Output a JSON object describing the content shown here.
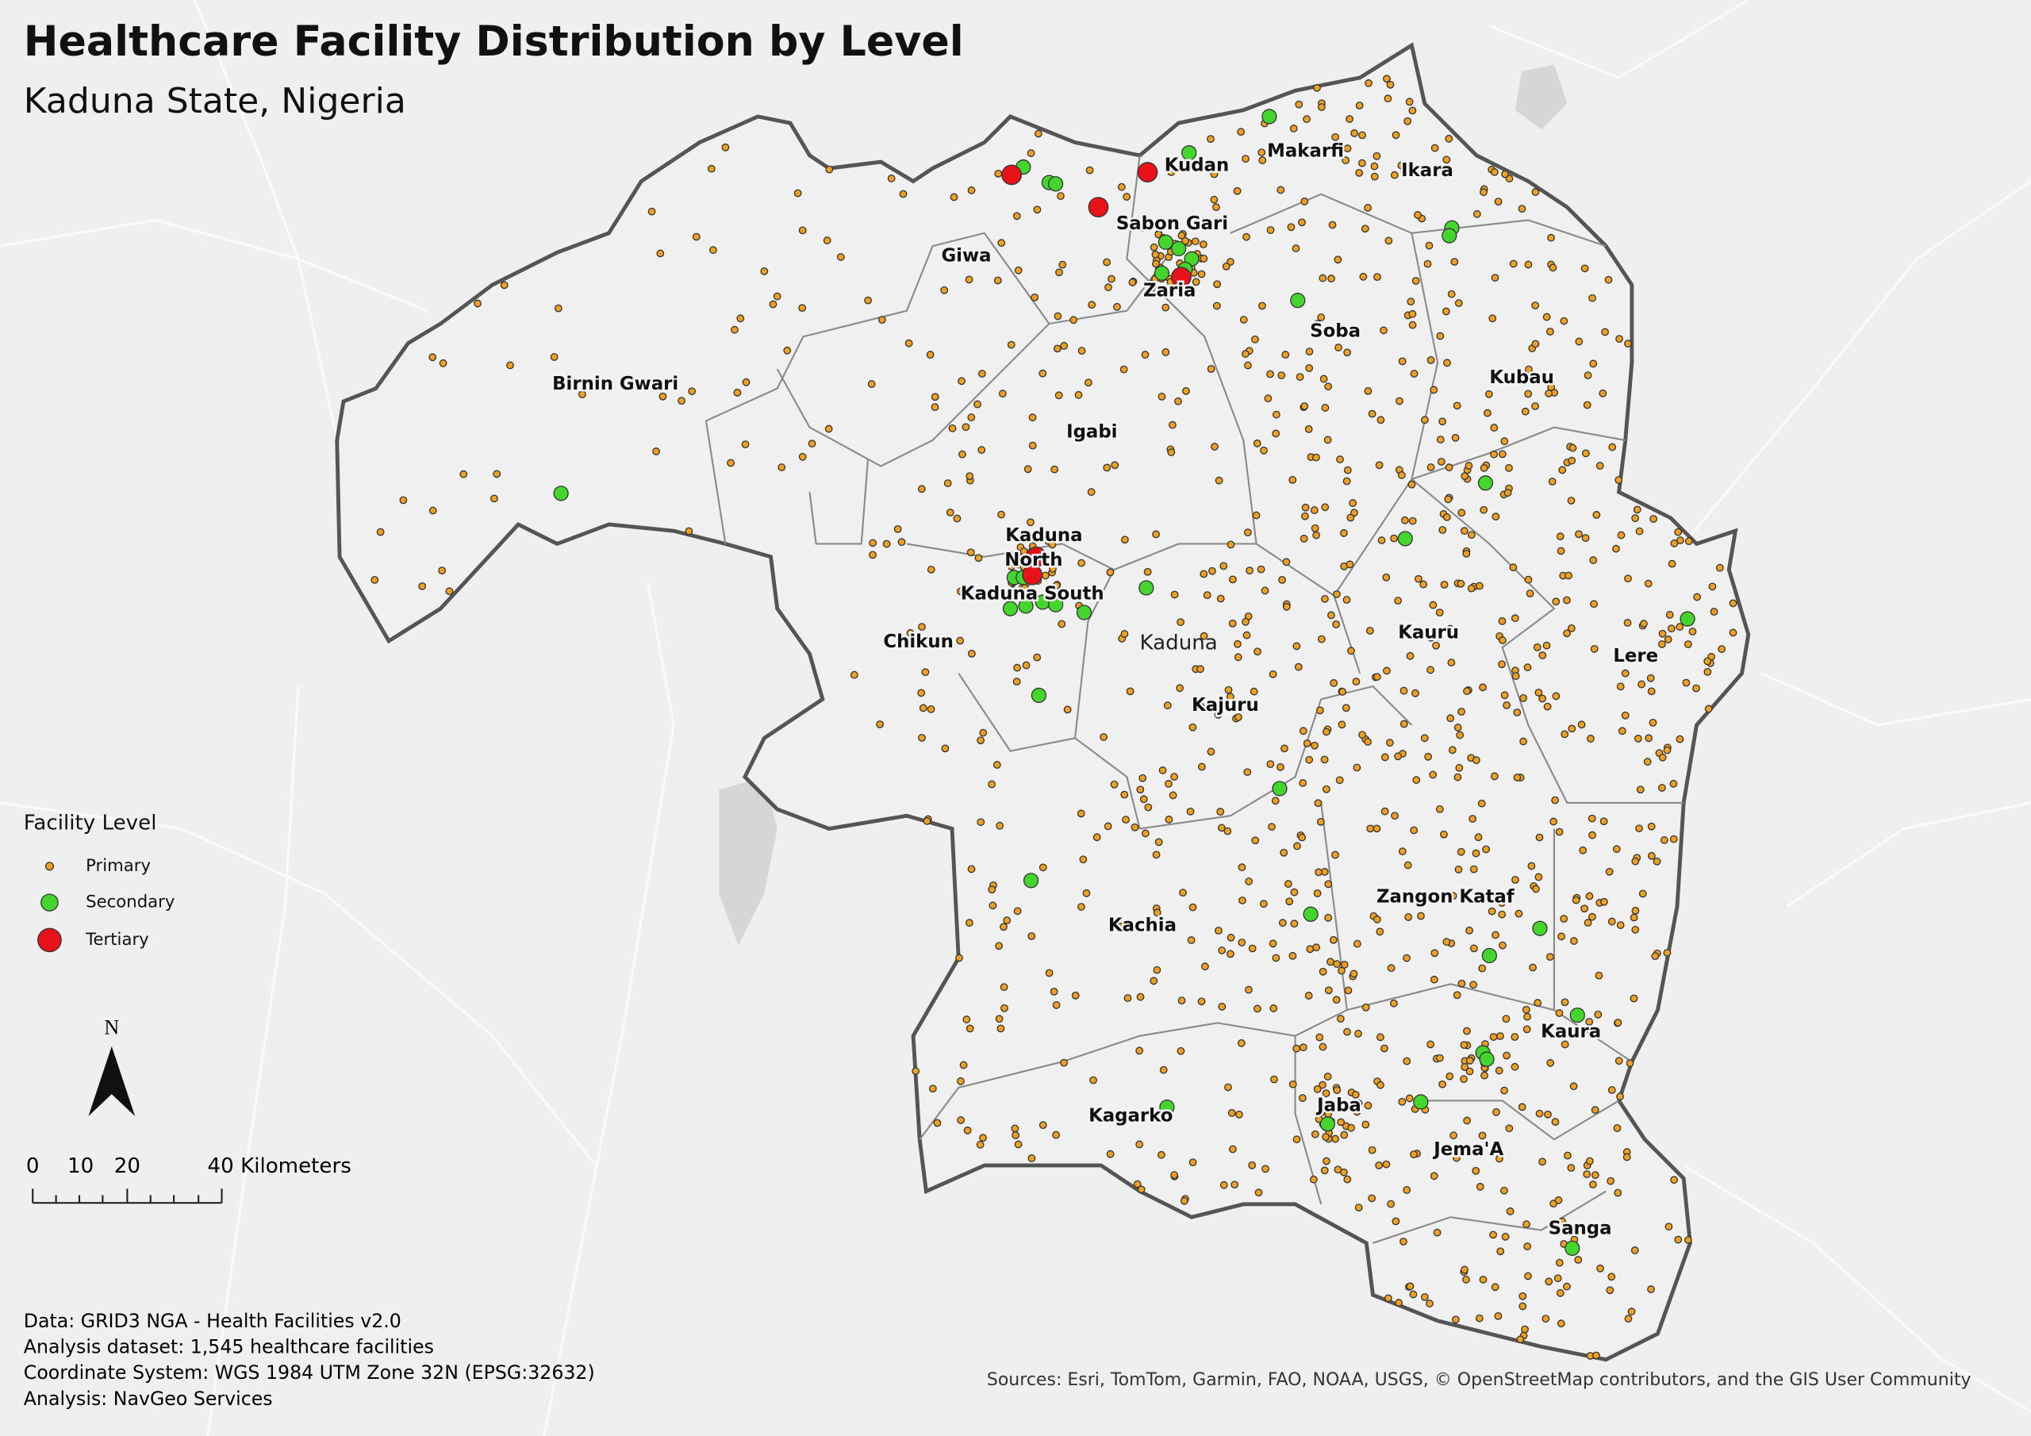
{
  "header": {
    "title": "Healthcare Facility Distribution by Level",
    "subtitle": "Kaduna State, Nigeria"
  },
  "map_labels": [
    [
      "Makarfi"
    ],
    [
      "Kudan"
    ],
    [
      "Ikara"
    ],
    [
      "Sabon Gari"
    ],
    [
      "Giwa"
    ],
    [
      "Zaria"
    ],
    [
      "Soba"
    ],
    [
      "Kubau"
    ],
    [
      "Birnin Gwari"
    ],
    [
      "Igabi"
    ],
    [
      "Kaduna",
      "North"
    ],
    [
      "Kaduna South"
    ],
    [
      "Chikun"
    ],
    [
      "Kauru"
    ],
    [
      "Lere"
    ],
    [
      "Kajuru"
    ],
    [
      "Zangon Kataf"
    ],
    [
      "Kachia"
    ],
    [
      "Kaura"
    ],
    [
      "Kagarko"
    ],
    [
      "Jaba"
    ],
    [
      "Jema'A"
    ],
    [
      "Sanga"
    ]
  ],
  "city_label": "Kaduna",
  "legend": {
    "title": "Facility Level",
    "items": [
      "Primary",
      "Secondary",
      "Tertiary"
    ]
  },
  "north_arrow": "N",
  "scale_bar": [
    "0",
    "10",
    "20",
    "40 Kilometers"
  ],
  "notes": [
    "Data: GRID3 NGA - Health Facilities v2.0",
    "Analysis dataset: 1,545 healthcare facilities",
    "Coordinate System: WGS 1984 UTM Zone 32N (EPSG:32632)",
    "Analysis: NavGeo Services"
  ],
  "sources": "Sources: Esri, TomTom, Garmin, FAO, NOAA, USGS, © OpenStreetMap contributors, and the GIS User Community"
}
